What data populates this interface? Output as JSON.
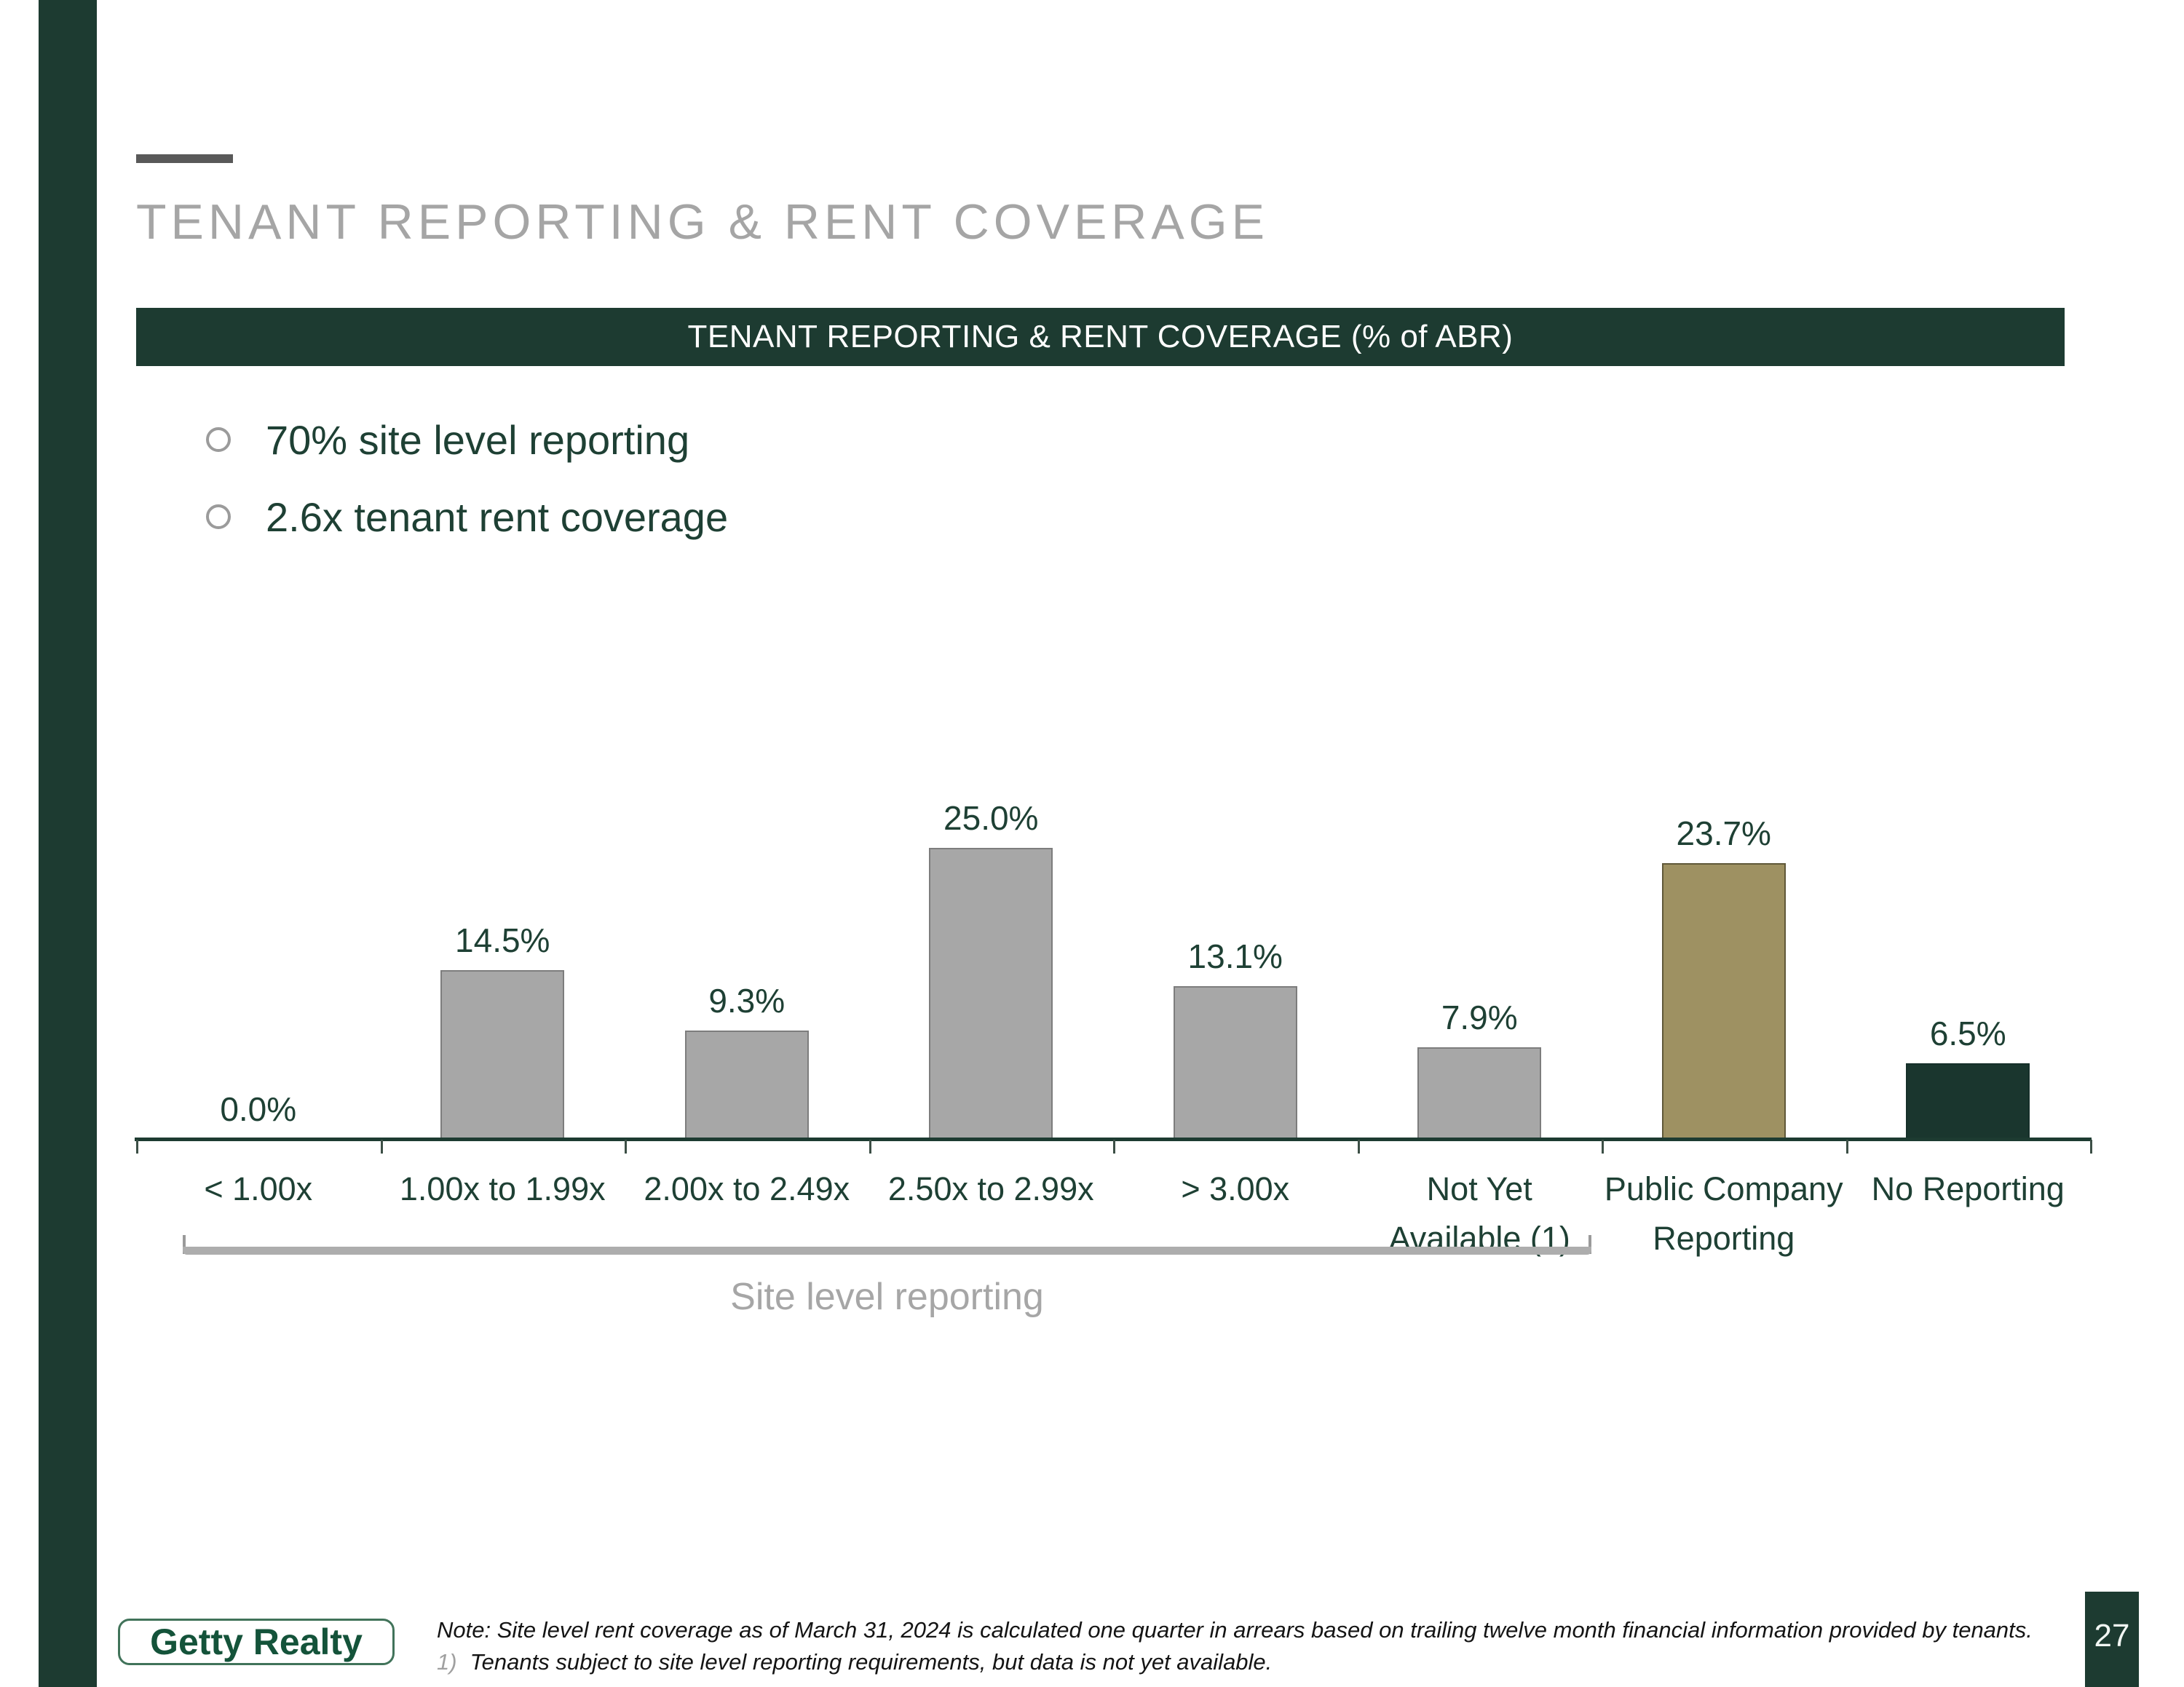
{
  "title": "TENANT REPORTING & RENT COVERAGE",
  "header_bar": {
    "label": "TENANT REPORTING & RENT COVERAGE (% of ABR)"
  },
  "bullets": [
    {
      "text": "70% site level reporting"
    },
    {
      "text": "2.6x tenant rent coverage"
    }
  ],
  "chart_data": {
    "type": "bar",
    "title": "TENANT REPORTING & RENT COVERAGE (% of ABR)",
    "categories": [
      "< 1.00x",
      "1.00x to 1.99x",
      "2.00x to 2.49x",
      "2.50x to 2.99x",
      "> 3.00x",
      "Not Yet\nAvailable (1)",
      "Public Company\nReporting",
      "No Reporting"
    ],
    "values": [
      0.0,
      14.5,
      9.3,
      25.0,
      13.1,
      7.9,
      23.7,
      6.5
    ],
    "value_labels": [
      "0.0%",
      "14.5%",
      "9.3%",
      "25.0%",
      "13.1%",
      "7.9%",
      "23.7%",
      "6.5%"
    ],
    "bar_colors": [
      "#a7a7a7",
      "#a7a7a7",
      "#a7a7a7",
      "#a7a7a7",
      "#a7a7a7",
      "#a7a7a7",
      "#9e9162",
      "#1a362e"
    ],
    "bar_border_colors": [
      "#7d7d7d",
      "#7d7d7d",
      "#7d7d7d",
      "#7d7d7d",
      "#7d7d7d",
      "#7d7d7d",
      "#5f5839",
      "#16302a"
    ],
    "xlabel": "",
    "ylabel": "",
    "ylim": [
      0,
      27
    ],
    "grid": false,
    "legend": false,
    "group_annotation": {
      "label": "Site level reporting",
      "span_categories": [
        0,
        5
      ]
    }
  },
  "footer": {
    "logo_text": "Getty Realty",
    "note_line1": "Note: Site level rent coverage as of March 31, 2024 is calculated one quarter in arrears based on trailing twelve month financial information provided by tenants.",
    "footnote_marker": "1)",
    "footnote_text": "Tenants subject to site level reporting requirements, but data is not yet available.",
    "page_number": "27"
  },
  "colors": {
    "dark_green": "#1d3b31",
    "text_green": "#1e4034",
    "gold": "#9e9162",
    "bar_gray": "#a7a7a7",
    "title_gray": "#a5a5a5",
    "accent_line_gray": "#595959"
  }
}
